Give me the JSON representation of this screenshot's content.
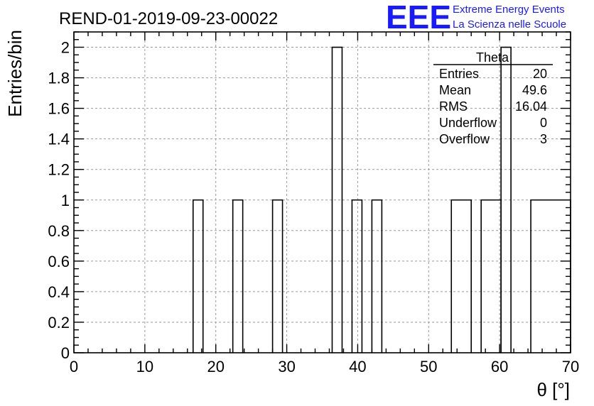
{
  "chart_data": {
    "type": "histogram",
    "title": "REND-01-2019-09-23-00022",
    "xlabel": "θ [°]",
    "ylabel": "Entries/bin",
    "xlim": [
      0,
      70
    ],
    "ylim": [
      0,
      2.1
    ],
    "grid": true,
    "x_ticks": [
      "0",
      "10",
      "20",
      "30",
      "40",
      "50",
      "60",
      "70"
    ],
    "y_ticks": [
      "0",
      "0.2",
      "0.4",
      "0.6",
      "0.8",
      "1",
      "1.2",
      "1.4",
      "1.6",
      "1.8",
      "2"
    ],
    "bin_width": 1.4,
    "bars": [
      {
        "x0": 16.8,
        "x1": 18.2,
        "value": 1
      },
      {
        "x0": 22.4,
        "x1": 23.8,
        "value": 1
      },
      {
        "x0": 28.0,
        "x1": 29.4,
        "value": 1
      },
      {
        "x0": 36.4,
        "x1": 37.8,
        "value": 2
      },
      {
        "x0": 39.2,
        "x1": 40.6,
        "value": 1
      },
      {
        "x0": 42.0,
        "x1": 43.4,
        "value": 1
      },
      {
        "x0": 53.2,
        "x1": 56.0,
        "value": 1
      },
      {
        "x0": 57.4,
        "x1": 60.2,
        "value": 1
      },
      {
        "x0": 60.2,
        "x1": 61.6,
        "value": 2
      },
      {
        "x0": 64.4,
        "x1": 70.0,
        "value": 1
      }
    ]
  },
  "stats_box": {
    "title": "Theta",
    "rows": [
      {
        "label": "Entries",
        "value": "20"
      },
      {
        "label": "Mean",
        "value": "49.6"
      },
      {
        "label": "RMS",
        "value": "16.04"
      },
      {
        "label": "Underflow",
        "value": "0"
      },
      {
        "label": "Overflow",
        "value": "3"
      }
    ]
  },
  "logo": {
    "mark": "EEE",
    "line1": "Extreme Energy Events",
    "line2": "La Scienza nelle Scuole",
    "color": "#1a1aff"
  },
  "colors": {
    "line": "#000000",
    "grid": "#9a9a9a"
  }
}
